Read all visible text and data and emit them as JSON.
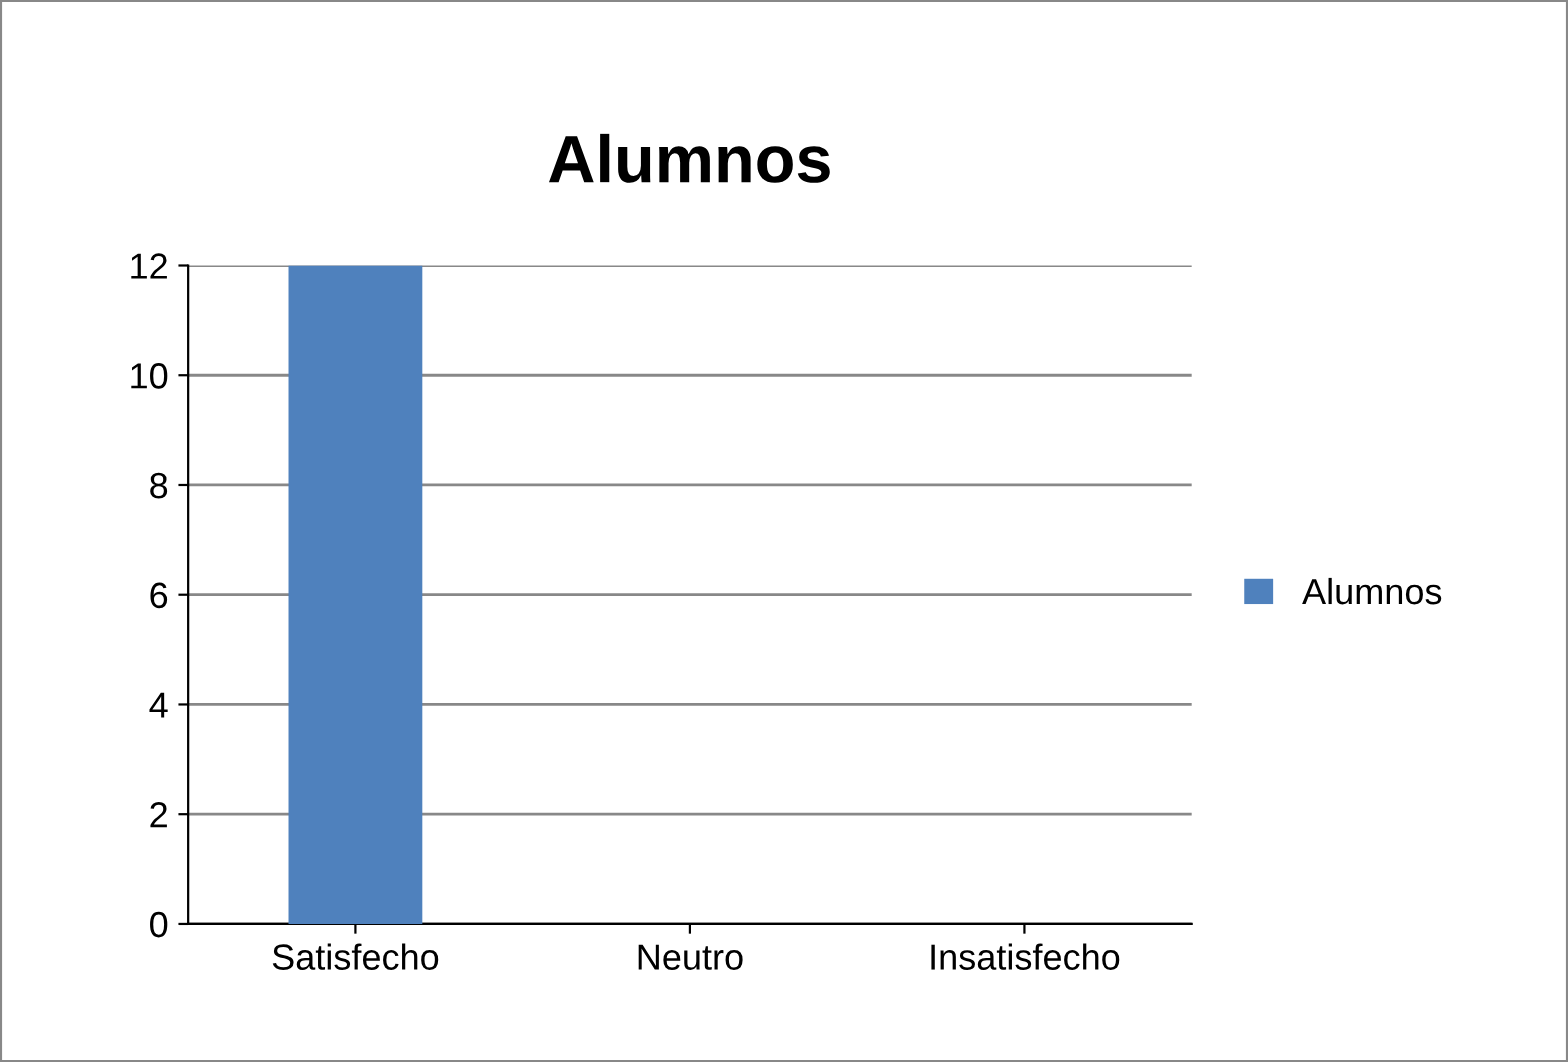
{
  "chart_data": {
    "type": "bar",
    "title": "Alumnos",
    "categories": [
      "Satisfecho",
      "Neutro",
      "Insatisfecho"
    ],
    "series": [
      {
        "name": "Alumnos",
        "color": "#4f81bd",
        "values": [
          12,
          0,
          0
        ]
      }
    ],
    "ylim": [
      0,
      12
    ],
    "yticks": [
      0,
      2,
      4,
      6,
      8,
      10,
      12
    ],
    "grid": "y",
    "legend": "right"
  }
}
